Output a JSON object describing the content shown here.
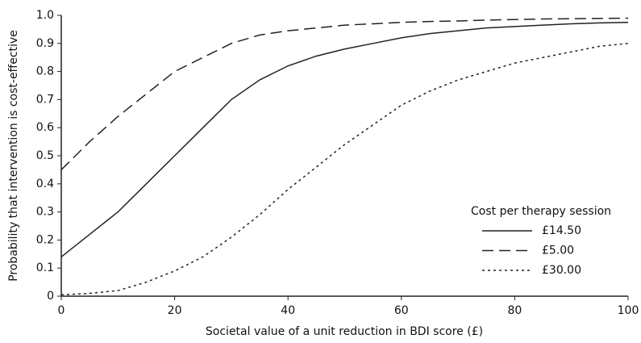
{
  "chart_data": {
    "type": "line",
    "x_label": "Societal value of a unit reduction in BDI score (£)",
    "y_label": "Probability that intervention is cost-effective",
    "legend_title": "Cost per therapy session",
    "legend": "lower right",
    "x": [
      0,
      5,
      10,
      15,
      20,
      25,
      30,
      35,
      40,
      45,
      50,
      55,
      60,
      65,
      70,
      75,
      80,
      85,
      90,
      95,
      100
    ],
    "series": [
      {
        "name": "£14.50",
        "color": "#222222",
        "style": "solid",
        "values": [
          0.14,
          0.22,
          0.3,
          0.4,
          0.5,
          0.6,
          0.7,
          0.77,
          0.82,
          0.855,
          0.88,
          0.9,
          0.92,
          0.935,
          0.945,
          0.955,
          0.96,
          0.965,
          0.97,
          0.973,
          0.975
        ]
      },
      {
        "name": "£5.00",
        "color": "#222222",
        "style": "dashed",
        "values": [
          0.45,
          0.55,
          0.64,
          0.72,
          0.8,
          0.85,
          0.9,
          0.93,
          0.945,
          0.955,
          0.965,
          0.97,
          0.975,
          0.978,
          0.98,
          0.983,
          0.985,
          0.987,
          0.988,
          0.989,
          0.99
        ]
      },
      {
        "name": "£30.00",
        "color": "#222222",
        "style": "dotted",
        "values": [
          0.005,
          0.01,
          0.02,
          0.05,
          0.09,
          0.14,
          0.21,
          0.29,
          0.38,
          0.46,
          0.54,
          0.61,
          0.68,
          0.73,
          0.77,
          0.8,
          0.83,
          0.85,
          0.87,
          0.89,
          0.9
        ]
      }
    ],
    "xlim": [
      0,
      100
    ],
    "xticks": [
      0,
      20,
      40,
      60,
      80,
      100
    ],
    "ylim": [
      0,
      1
    ],
    "yticks": [
      0,
      0.1,
      0.2,
      0.3,
      0.4,
      0.5,
      0.6,
      0.7,
      0.8,
      0.9,
      {
        "value": 1,
        "label": "1.0"
      }
    ],
    "grid": false
  }
}
